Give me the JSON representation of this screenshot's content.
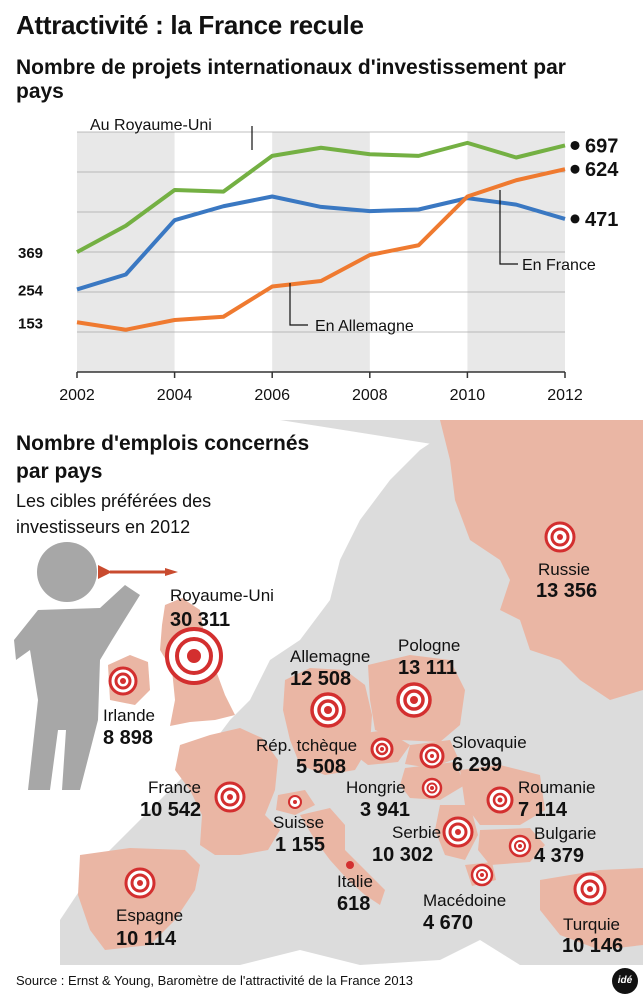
{
  "header": {
    "title": "Attractivité : la France recule",
    "subtitle": "Nombre de projets internationaux d'investissement par pays"
  },
  "chart_data": {
    "type": "line",
    "x": [
      2002,
      2003,
      2004,
      2005,
      2006,
      2007,
      2008,
      2009,
      2010,
      2011,
      2012
    ],
    "x_ticks": [
      "2002",
      "2004",
      "2006",
      "2008",
      "2010",
      "2012"
    ],
    "ylim": [
      0,
      800
    ],
    "series": [
      {
        "name": "Au Royaume-Uni",
        "color": "#74b043",
        "values": [
          369,
          450,
          560,
          555,
          665,
          690,
          670,
          665,
          705,
          660,
          697
        ],
        "start_label": "369",
        "end_label": "697"
      },
      {
        "name": "En France",
        "color": "#3a78c2",
        "values": [
          254,
          300,
          467,
          510,
          540,
          508,
          495,
          500,
          535,
          515,
          471
        ],
        "start_label": "254",
        "end_label": "471"
      },
      {
        "name": "En Allemagne",
        "color": "#ef7a30",
        "values": [
          153,
          130,
          160,
          170,
          263,
          280,
          360,
          390,
          540,
          590,
          624
        ],
        "start_label": "153",
        "end_label": "624"
      }
    ]
  },
  "map": {
    "title": "Nombre d'emplois concernés par pays",
    "subtitle": "Les cibles préférées des investisseurs en 2012",
    "countries": [
      {
        "name": "Royaume-Uni",
        "jobs": "30 311"
      },
      {
        "name": "Russie",
        "jobs": "13 356"
      },
      {
        "name": "Pologne",
        "jobs": "13 111"
      },
      {
        "name": "Allemagne",
        "jobs": "12 508"
      },
      {
        "name": "France",
        "jobs": "10 542"
      },
      {
        "name": "Serbie",
        "jobs": "10 302"
      },
      {
        "name": "Turquie",
        "jobs": "10 146"
      },
      {
        "name": "Espagne",
        "jobs": "10 114"
      },
      {
        "name": "Irlande",
        "jobs": "8 898"
      },
      {
        "name": "Roumanie",
        "jobs": "7 114"
      },
      {
        "name": "Slovaquie",
        "jobs": "6 299"
      },
      {
        "name": "Rép. tchèque",
        "jobs": "5 508"
      },
      {
        "name": "Macédoine",
        "jobs": "4 670"
      },
      {
        "name": "Bulgarie",
        "jobs": "4 379"
      },
      {
        "name": "Hongrie",
        "jobs": "3 941"
      },
      {
        "name": "Suisse",
        "jobs": "1 155"
      },
      {
        "name": "Italie",
        "jobs": "618"
      }
    ]
  },
  "footer": {
    "source": "Source : Ernst & Young, Baromètre de l'attractivité de la France 2013",
    "logo": "idé"
  }
}
